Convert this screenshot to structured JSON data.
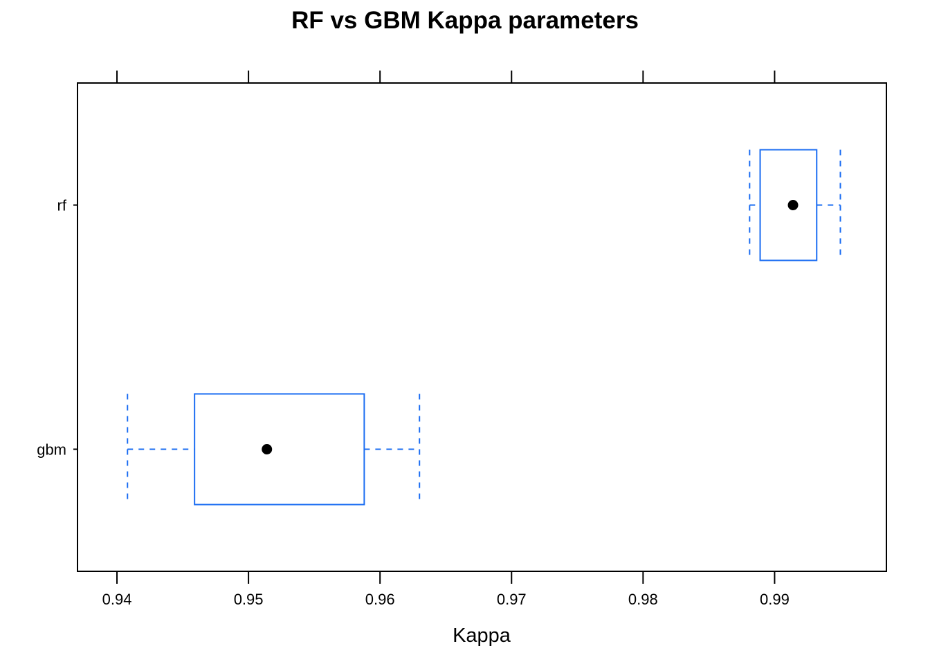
{
  "chart_data": {
    "type": "boxplot",
    "title": "RF vs GBM Kappa parameters",
    "xlabel": "Kappa",
    "ylabel": "",
    "xlim": [
      0.937,
      0.9985
    ],
    "x_ticks": [
      0.94,
      0.95,
      0.96,
      0.97,
      0.98,
      0.99
    ],
    "x_tick_labels": [
      "0.94",
      "0.95",
      "0.96",
      "0.97",
      "0.98",
      "0.99"
    ],
    "categories": [
      "rf",
      "gbm"
    ],
    "series": [
      {
        "category": "rf",
        "min": 0.9881,
        "q1": 0.9889,
        "median": 0.9914,
        "q3": 0.9932,
        "max": 0.995
      },
      {
        "category": "gbm",
        "min": 0.9408,
        "q1": 0.9459,
        "median": 0.9514,
        "q3": 0.9588,
        "max": 0.963
      }
    ],
    "box_color": "#1a6cf2",
    "median_marker_color": "#000000",
    "grid": false
  }
}
